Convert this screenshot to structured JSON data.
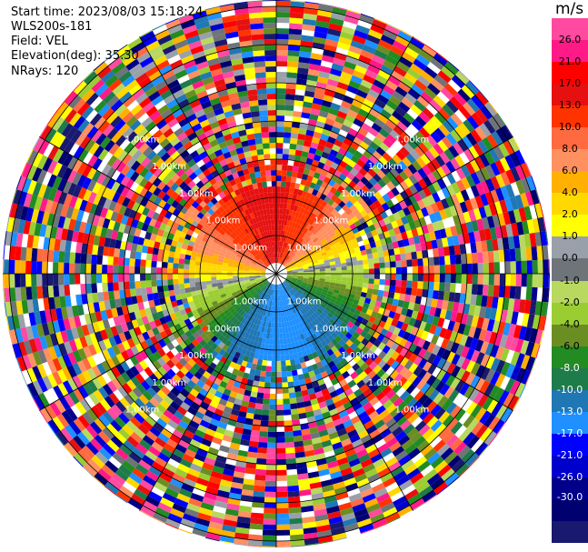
{
  "header": {
    "start_time": "Start time: 2023/08/03 15:18:24",
    "instrument": "WLS200s-181",
    "field": "Field: VEL",
    "elevation": "Elevation(deg): 35.30",
    "nrays": "NRays: 120"
  },
  "chart_data": {
    "type": "heatmap",
    "projection": "polar-ppi",
    "field": "VEL",
    "nrays": 120,
    "range_ring_label": "1.00km",
    "colorbar": {
      "unit": "m/s",
      "ticks": [
        "26.0",
        "21.0",
        "17.0",
        "13.0",
        "10.0",
        "8.0",
        "6.0",
        "4.0",
        "2.0",
        "1.0",
        "0.0",
        "-1.0",
        "-2.0",
        "-4.0",
        "-6.0",
        "-8.0",
        "-10.0",
        "-13.0",
        "-17.0",
        "-21.0",
        "-26.0",
        "-30.0"
      ],
      "colors": [
        "#ff4aa0",
        "#ff1a88",
        "#ff0000",
        "#e61010",
        "#ff3300",
        "#ff6a40",
        "#ff9060",
        "#ffb000",
        "#ffd800",
        "#ffff00",
        "#9aa0aa",
        "#6e7478",
        "#b8d860",
        "#9acd32",
        "#6b8e23",
        "#228b22",
        "#1e7b4a",
        "#1f77b4",
        "#1e90ff",
        "#0000ff",
        "#0000cd",
        "#00008b",
        "#000070",
        "#191970"
      ]
    }
  }
}
